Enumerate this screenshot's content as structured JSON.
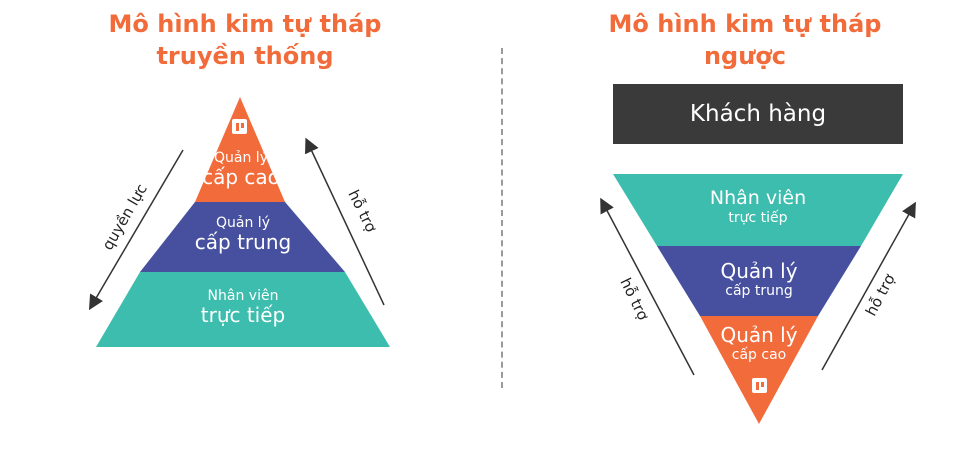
{
  "left": {
    "title_line1": "Mô hình kim tự tháp",
    "title_line2": "truyền thống",
    "tiers": [
      {
        "line1": "Quản lý",
        "line2": "cấp cao",
        "color": "#f26b3a"
      },
      {
        "line1": "Quản lý",
        "line2": "cấp trung",
        "color": "#46509f"
      },
      {
        "line1": "Nhân viên",
        "line2": "trực tiếp",
        "color": "#3dbdad"
      }
    ],
    "arrow_left_label": "quyền lực",
    "arrow_right_label": "hỗ trợ"
  },
  "right": {
    "title_line1": "Mô hình kim tự tháp",
    "title_line2": "ngược",
    "customer_label": "Khách hàng",
    "tiers": [
      {
        "line1": "Nhân viên",
        "line2": "trực tiếp",
        "color": "#3dbdad"
      },
      {
        "line1": "Quản lý",
        "line2": "cấp trung",
        "color": "#46509f"
      },
      {
        "line1": "Quản lý",
        "line2": "cấp cao",
        "color": "#f26b3a"
      }
    ],
    "arrow_left_label": "hỗ trợ",
    "arrow_right_label": "hỗ trợ"
  },
  "icons": {
    "top_tier_icon": "person-card-icon"
  },
  "colors": {
    "title": "#f26b3a",
    "customer_box": "#3a3a3a",
    "arrow": "#333333"
  }
}
